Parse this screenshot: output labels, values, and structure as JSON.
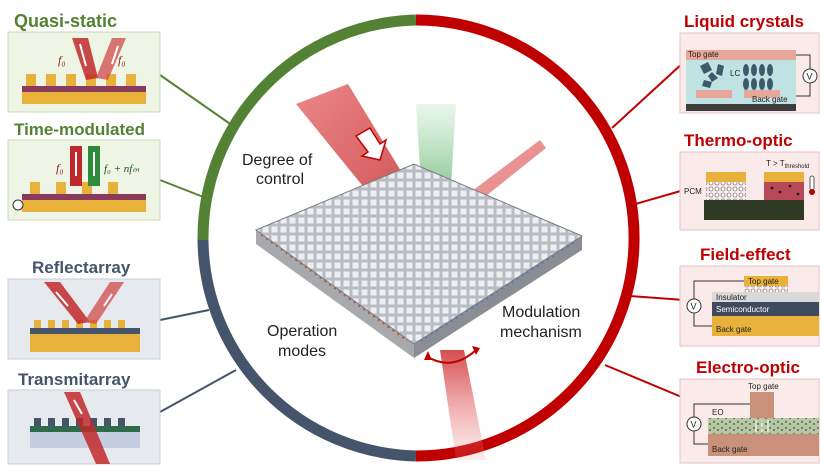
{
  "center": {
    "label_degree_line1": "Degree of",
    "label_degree_line2": "control",
    "label_operation_line1": "Operation",
    "label_operation_line2": "modes",
    "label_modulation_line1": "Modulation",
    "label_modulation_line2": "mechanism"
  },
  "left_panels": {
    "quasi_static": {
      "title": "Quasi-static",
      "f_left": "f₀",
      "f_right": "f₀"
    },
    "time_modulated": {
      "title": "Time-modulated",
      "f_in": "f₀",
      "f_out": "f₀ + nfₘ"
    },
    "reflectarray": {
      "title": "Reflectarray"
    },
    "transmitarray": {
      "title": "Transmitarray"
    }
  },
  "right_panels": {
    "liquid_crystals": {
      "title": "Liquid crystals",
      "top_gate": "Top gate",
      "lc": "LC",
      "back_gate": "Back gate",
      "meter": "V"
    },
    "thermo_optic": {
      "title": "Thermo-optic",
      "threshold_main": "T > T",
      "threshold_sub": "threshold",
      "pcm": "PCM"
    },
    "field_effect": {
      "title": "Field-effect",
      "top_gate": "Top gate",
      "insulator": "Insulator",
      "semiconductor": "Semiconductor",
      "back_gate": "Back gate",
      "meter": "V"
    },
    "electro_optic": {
      "title": "Electro-optic",
      "top_gate": "Top gate",
      "eo": "EO",
      "back_gate": "Back gate",
      "meter": "V"
    }
  },
  "colors": {
    "green": "#548235",
    "red": "#c00000",
    "navy": "#44546a"
  }
}
